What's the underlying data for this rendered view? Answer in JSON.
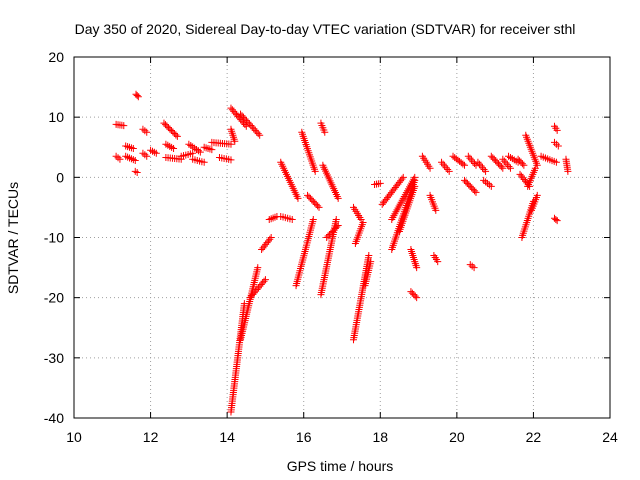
{
  "chart_data": {
    "type": "scatter",
    "title": "Day 350 of 2020, Sidereal Day-to-day VTEC variation (SDTVAR) for receiver sthl",
    "xlabel": "GPS time / hours",
    "ylabel": "SDTVAR / TECUs",
    "xlim": [
      10,
      24
    ],
    "ylim": [
      -40,
      20
    ],
    "x_ticks": [
      10,
      12,
      14,
      16,
      18,
      20,
      22,
      24
    ],
    "y_ticks": [
      -40,
      -30,
      -20,
      -10,
      0,
      10,
      20
    ],
    "grid": true,
    "marker": "plus",
    "series_color": "#ff0000",
    "tracks": [
      {
        "x": [
          11.1,
          11.3
        ],
        "y": [
          8.8,
          8.6
        ]
      },
      {
        "x": [
          11.1,
          11.2
        ],
        "y": [
          3.5,
          3.0
        ]
      },
      {
        "x": [
          11.35,
          11.55
        ],
        "y": [
          5.2,
          4.8
        ]
      },
      {
        "x": [
          11.35,
          11.6
        ],
        "y": [
          3.5,
          2.8
        ]
      },
      {
        "x": [
          11.62,
          11.68
        ],
        "y": [
          13.8,
          13.4
        ]
      },
      {
        "x": [
          11.6,
          11.65
        ],
        "y": [
          1.0,
          0.8
        ]
      },
      {
        "x": [
          11.8,
          11.9
        ],
        "y": [
          8.0,
          7.5
        ]
      },
      {
        "x": [
          11.8,
          11.9
        ],
        "y": [
          4.0,
          3.5
        ]
      },
      {
        "x": [
          12.0,
          12.15
        ],
        "y": [
          4.5,
          4.0
        ]
      },
      {
        "x": [
          12.35,
          12.7
        ],
        "y": [
          9.0,
          6.8
        ]
      },
      {
        "x": [
          12.4,
          12.6
        ],
        "y": [
          5.5,
          4.8
        ]
      },
      {
        "x": [
          12.4,
          12.8
        ],
        "y": [
          3.3,
          3.0
        ]
      },
      {
        "x": [
          12.8,
          13.1
        ],
        "y": [
          3.5,
          4.0
        ]
      },
      {
        "x": [
          13.0,
          13.3
        ],
        "y": [
          5.5,
          4.2
        ]
      },
      {
        "x": [
          13.1,
          13.4
        ],
        "y": [
          3.0,
          2.5
        ]
      },
      {
        "x": [
          13.4,
          13.6
        ],
        "y": [
          5.0,
          4.6
        ]
      },
      {
        "x": [
          13.6,
          14.1
        ],
        "y": [
          5.8,
          5.5
        ]
      },
      {
        "x": [
          13.8,
          14.1
        ],
        "y": [
          3.3,
          2.9
        ]
      },
      {
        "x": [
          14.1,
          14.2
        ],
        "y": [
          8.0,
          6.0
        ]
      },
      {
        "x": [
          14.1,
          14.5
        ],
        "y": [
          11.5,
          8.5
        ]
      },
      {
        "x": [
          14.35,
          14.85
        ],
        "y": [
          10.5,
          7.0
        ]
      },
      {
        "x": [
          14.1,
          14.45
        ],
        "y": [
          -39.0,
          -21.0
        ]
      },
      {
        "x": [
          14.35,
          14.8
        ],
        "y": [
          -27.0,
          -15.0
        ]
      },
      {
        "x": [
          14.6,
          15.0
        ],
        "y": [
          -20.0,
          -17.0
        ]
      },
      {
        "x": [
          14.9,
          15.15
        ],
        "y": [
          -12.0,
          -10.0
        ]
      },
      {
        "x": [
          15.1,
          15.3
        ],
        "y": [
          -7.0,
          -6.5
        ]
      },
      {
        "x": [
          15.4,
          15.85
        ],
        "y": [
          2.5,
          -3.5
        ]
      },
      {
        "x": [
          15.4,
          15.7
        ],
        "y": [
          -6.5,
          -7.0
        ]
      },
      {
        "x": [
          15.8,
          16.25
        ],
        "y": [
          -18.0,
          -7.0
        ]
      },
      {
        "x": [
          15.95,
          16.3
        ],
        "y": [
          7.5,
          1.0
        ]
      },
      {
        "x": [
          16.1,
          16.4
        ],
        "y": [
          -3.0,
          -5.0
        ]
      },
      {
        "x": [
          16.45,
          16.85
        ],
        "y": [
          -19.5,
          -7.0
        ]
      },
      {
        "x": [
          16.45,
          16.55
        ],
        "y": [
          9.0,
          7.5
        ]
      },
      {
        "x": [
          16.5,
          16.9
        ],
        "y": [
          2.0,
          -3.5
        ]
      },
      {
        "x": [
          16.6,
          16.9
        ],
        "y": [
          -10.0,
          -8.0
        ]
      },
      {
        "x": [
          17.3,
          17.5
        ],
        "y": [
          -5.0,
          -7.0
        ]
      },
      {
        "x": [
          17.35,
          17.55
        ],
        "y": [
          -11.0,
          -7.5
        ]
      },
      {
        "x": [
          17.3,
          17.7
        ],
        "y": [
          -27.0,
          -13.0
        ]
      },
      {
        "x": [
          17.6,
          17.75
        ],
        "y": [
          -18.0,
          -14.0
        ]
      },
      {
        "x": [
          17.85,
          18.0
        ],
        "y": [
          -1.2,
          -1.0
        ]
      },
      {
        "x": [
          18.05,
          18.6
        ],
        "y": [
          -4.5,
          0.0
        ]
      },
      {
        "x": [
          18.3,
          18.9
        ],
        "y": [
          -7.0,
          0.0
        ]
      },
      {
        "x": [
          18.3,
          18.9
        ],
        "y": [
          -12.0,
          -0.5
        ]
      },
      {
        "x": [
          18.5,
          18.9
        ],
        "y": [
          -9.0,
          -1.5
        ]
      },
      {
        "x": [
          18.8,
          18.95
        ],
        "y": [
          -12.0,
          -15.0
        ]
      },
      {
        "x": [
          18.8,
          18.95
        ],
        "y": [
          -19.0,
          -20.0
        ]
      },
      {
        "x": [
          19.1,
          19.3
        ],
        "y": [
          3.5,
          1.5
        ]
      },
      {
        "x": [
          19.3,
          19.45
        ],
        "y": [
          -3.0,
          -5.5
        ]
      },
      {
        "x": [
          19.4,
          19.5
        ],
        "y": [
          -13.0,
          -14.0
        ]
      },
      {
        "x": [
          19.6,
          19.8
        ],
        "y": [
          2.5,
          1.0
        ]
      },
      {
        "x": [
          19.9,
          20.2
        ],
        "y": [
          3.5,
          2.0
        ]
      },
      {
        "x": [
          20.2,
          20.5
        ],
        "y": [
          -0.5,
          -2.5
        ]
      },
      {
        "x": [
          20.3,
          20.5
        ],
        "y": [
          3.5,
          2.0
        ]
      },
      {
        "x": [
          20.35,
          20.45
        ],
        "y": [
          -14.5,
          -15.0
        ]
      },
      {
        "x": [
          20.55,
          20.75
        ],
        "y": [
          2.5,
          1.0
        ]
      },
      {
        "x": [
          20.7,
          20.9
        ],
        "y": [
          -0.5,
          -1.5
        ]
      },
      {
        "x": [
          20.9,
          21.2
        ],
        "y": [
          3.5,
          1.5
        ]
      },
      {
        "x": [
          21.2,
          21.4
        ],
        "y": [
          3.0,
          1.5
        ]
      },
      {
        "x": [
          21.35,
          21.6
        ],
        "y": [
          3.5,
          2.5
        ]
      },
      {
        "x": [
          21.6,
          21.75
        ],
        "y": [
          3.0,
          2.0
        ]
      },
      {
        "x": [
          21.7,
          22.0
        ],
        "y": [
          -10.0,
          -4.0
        ]
      },
      {
        "x": [
          21.65,
          21.9
        ],
        "y": [
          0.5,
          -1.5
        ]
      },
      {
        "x": [
          21.8,
          22.1
        ],
        "y": [
          7.0,
          2.0
        ]
      },
      {
        "x": [
          21.85,
          22.05
        ],
        "y": [
          -1.5,
          1.5
        ]
      },
      {
        "x": [
          21.95,
          22.1
        ],
        "y": [
          -5.5,
          -3.0
        ]
      },
      {
        "x": [
          22.2,
          22.6
        ],
        "y": [
          3.5,
          2.5
        ]
      },
      {
        "x": [
          22.55,
          22.62
        ],
        "y": [
          8.5,
          7.8
        ]
      },
      {
        "x": [
          22.55,
          22.65
        ],
        "y": [
          5.8,
          5.2
        ]
      },
      {
        "x": [
          22.55,
          22.62
        ],
        "y": [
          -6.8,
          -7.2
        ]
      },
      {
        "x": [
          22.85,
          22.9
        ],
        "y": [
          3.0,
          1.0
        ]
      }
    ]
  }
}
